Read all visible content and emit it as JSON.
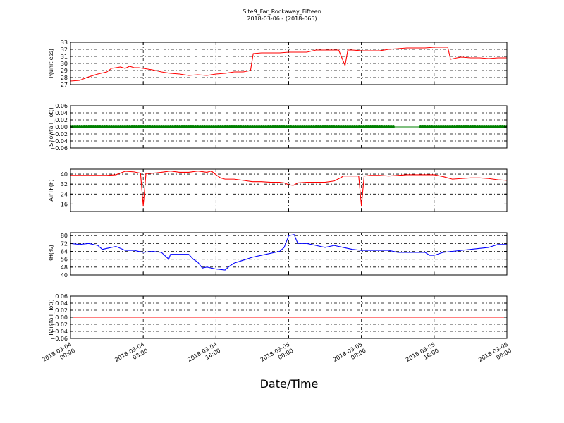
{
  "title": "Site9_Far_Rockaway_Fifteen",
  "subtitle": "2018-03-06 - (2018-065)",
  "chart_data": {
    "type": "line",
    "xlabel": "Date/Time",
    "x_ticks": [
      {
        "t": 0,
        "line1": "2018-03-04",
        "line2": "00:00"
      },
      {
        "t": 8,
        "line1": "2018-03-04",
        "line2": "08:00"
      },
      {
        "t": 16,
        "line1": "2018-03-04",
        "line2": "16:00"
      },
      {
        "t": 24,
        "line1": "2018-03-05",
        "line2": "00:00"
      },
      {
        "t": 32,
        "line1": "2018-03-05",
        "line2": "08:00"
      },
      {
        "t": 40,
        "line1": "2018-03-05",
        "line2": "16:00"
      },
      {
        "t": 48,
        "line1": "2018-03-06",
        "line2": "00:00"
      }
    ],
    "x_range_hours": [
      0,
      48
    ],
    "grid": true,
    "panels": [
      {
        "ylabel": "P(unitless)",
        "ylim": [
          27,
          33
        ],
        "yticks": [
          27,
          28,
          29,
          30,
          31,
          32,
          33
        ],
        "ytick_labels": [
          "27",
          "28",
          "29",
          "30",
          "31",
          "32",
          "33"
        ],
        "color": "#ff0000",
        "style": "line",
        "points": [
          [
            0,
            27.5
          ],
          [
            1,
            27.6
          ],
          [
            2,
            28.1
          ],
          [
            3,
            28.5
          ],
          [
            4,
            28.8
          ],
          [
            4.5,
            29.3
          ],
          [
            5,
            29.4
          ],
          [
            5.5,
            29.5
          ],
          [
            6,
            29.3
          ],
          [
            6.5,
            29.6
          ],
          [
            7,
            29.4
          ],
          [
            7.5,
            29.4
          ],
          [
            8,
            29.3
          ],
          [
            9,
            29.1
          ],
          [
            10,
            28.8
          ],
          [
            11,
            28.6
          ],
          [
            12,
            28.5
          ],
          [
            13,
            28.3
          ],
          [
            14,
            28.4
          ],
          [
            15,
            28.3
          ],
          [
            16,
            28.5
          ],
          [
            17,
            28.6
          ],
          [
            18,
            28.8
          ],
          [
            19,
            28.8
          ],
          [
            19.8,
            29.0
          ],
          [
            20.1,
            31.4
          ],
          [
            21,
            31.5
          ],
          [
            22,
            31.5
          ],
          [
            23,
            31.5
          ],
          [
            24,
            31.6
          ],
          [
            25,
            31.6
          ],
          [
            26,
            31.6
          ],
          [
            27,
            31.9
          ],
          [
            28,
            31.9
          ],
          [
            29.5,
            31.9
          ],
          [
            30.2,
            29.7
          ],
          [
            30.5,
            31.9
          ],
          [
            31,
            31.9
          ],
          [
            32,
            31.8
          ],
          [
            33,
            31.8
          ],
          [
            34,
            31.8
          ],
          [
            35,
            32.0
          ],
          [
            36,
            32.1
          ],
          [
            37,
            32.2
          ],
          [
            38,
            32.2
          ],
          [
            39,
            32.2
          ],
          [
            40,
            32.3
          ],
          [
            41,
            32.3
          ],
          [
            41.5,
            32.3
          ],
          [
            41.8,
            30.6
          ],
          [
            42.5,
            30.8
          ],
          [
            43,
            30.9
          ],
          [
            44,
            30.8
          ],
          [
            45,
            30.8
          ],
          [
            46,
            30.7
          ],
          [
            47,
            30.8
          ],
          [
            48,
            30.8
          ]
        ]
      },
      {
        "ylabel": "Snowfall_Tot()",
        "ylim": [
          -0.06,
          0.06
        ],
        "yticks": [
          -0.06,
          -0.04,
          -0.02,
          0,
          0.02,
          0.04,
          0.06
        ],
        "ytick_labels": [
          "−0.06",
          "−0.04",
          "−0.02",
          "0.00",
          "0.02",
          "0.04",
          "0.06"
        ],
        "color": "#008000",
        "style": "markers",
        "points": [
          [
            0,
            0
          ],
          [
            35.5,
            0
          ],
          [
            38.5,
            0
          ],
          [
            48,
            0
          ]
        ],
        "gaps": [
          [
            35.5,
            38.5
          ]
        ]
      },
      {
        "ylabel": "AirTF(F)",
        "ylim": [
          10,
          44
        ],
        "yticks": [
          16,
          24,
          32,
          40
        ],
        "ytick_labels": [
          "16",
          "24",
          "32",
          "40"
        ],
        "color": "#ff0000",
        "style": "line",
        "points": [
          [
            0,
            39
          ],
          [
            2,
            39
          ],
          [
            4,
            39
          ],
          [
            5,
            39.5
          ],
          [
            6,
            42.3
          ],
          [
            7,
            41.8
          ],
          [
            7.7,
            40.8
          ],
          [
            8,
            14.5
          ],
          [
            8.3,
            40.5
          ],
          [
            9,
            40.7
          ],
          [
            10,
            41.5
          ],
          [
            11,
            42.5
          ],
          [
            12,
            41.5
          ],
          [
            13,
            41.5
          ],
          [
            14,
            42.5
          ],
          [
            15,
            41.5
          ],
          [
            15.5,
            42.5
          ],
          [
            16,
            39.5
          ],
          [
            16.5,
            37
          ],
          [
            17,
            36
          ],
          [
            18,
            36
          ],
          [
            19,
            35
          ],
          [
            20,
            34
          ],
          [
            21,
            34
          ],
          [
            22,
            33.5
          ],
          [
            23,
            33.5
          ],
          [
            23.5,
            33
          ],
          [
            24,
            31.5
          ],
          [
            24.5,
            31
          ],
          [
            25,
            33
          ],
          [
            26,
            33.5
          ],
          [
            27,
            33.5
          ],
          [
            28,
            33.5
          ],
          [
            29,
            34.5
          ],
          [
            29.8,
            37.5
          ],
          [
            30,
            38.5
          ],
          [
            31,
            38.5
          ],
          [
            31.7,
            38.5
          ],
          [
            32,
            14.5
          ],
          [
            32.3,
            38.5
          ],
          [
            33,
            39
          ],
          [
            34,
            39
          ],
          [
            35,
            38.5
          ],
          [
            36,
            39
          ],
          [
            37,
            39.5
          ],
          [
            38,
            39.5
          ],
          [
            39,
            39.5
          ],
          [
            40,
            39.5
          ],
          [
            41,
            38
          ],
          [
            42,
            36
          ],
          [
            43,
            36.5
          ],
          [
            44,
            37
          ],
          [
            45,
            37
          ],
          [
            46,
            36.5
          ],
          [
            47,
            35.5
          ],
          [
            48,
            35
          ]
        ]
      },
      {
        "ylabel": "RH(%)",
        "ylim": [
          40,
          83
        ],
        "yticks": [
          40,
          48,
          56,
          64,
          72,
          80
        ],
        "ytick_labels": [
          "40",
          "48",
          "56",
          "64",
          "72",
          "80"
        ],
        "color": "#0000ff",
        "style": "line",
        "points": [
          [
            0,
            72
          ],
          [
            1,
            71
          ],
          [
            2,
            72
          ],
          [
            3,
            70
          ],
          [
            3.5,
            66
          ],
          [
            4,
            67
          ],
          [
            5,
            69
          ],
          [
            6,
            65
          ],
          [
            7,
            65
          ],
          [
            8,
            63
          ],
          [
            9,
            64
          ],
          [
            10,
            63
          ],
          [
            10.8,
            56
          ],
          [
            11,
            61
          ],
          [
            12,
            61
          ],
          [
            13,
            61
          ],
          [
            13.5,
            56
          ],
          [
            14,
            53
          ],
          [
            14.5,
            47
          ],
          [
            15,
            48
          ],
          [
            15.5,
            47
          ],
          [
            16,
            46
          ],
          [
            17,
            45
          ],
          [
            17.5,
            49
          ],
          [
            18,
            52
          ],
          [
            19,
            55
          ],
          [
            20,
            58
          ],
          [
            21,
            60
          ],
          [
            22,
            62
          ],
          [
            23,
            64
          ],
          [
            23.5,
            68
          ],
          [
            24,
            80
          ],
          [
            24.6,
            81
          ],
          [
            25,
            72
          ],
          [
            26,
            72
          ],
          [
            27,
            70
          ],
          [
            28,
            68
          ],
          [
            29,
            70
          ],
          [
            30,
            68
          ],
          [
            31,
            66
          ],
          [
            32,
            65
          ],
          [
            33,
            65
          ],
          [
            34,
            65
          ],
          [
            35,
            65
          ],
          [
            36,
            63
          ],
          [
            37,
            63
          ],
          [
            38,
            63
          ],
          [
            39,
            63
          ],
          [
            39.5,
            60
          ],
          [
            40,
            60
          ],
          [
            41,
            63
          ],
          [
            42,
            64
          ],
          [
            43,
            65
          ],
          [
            44,
            66
          ],
          [
            45,
            67
          ],
          [
            46,
            68
          ],
          [
            47,
            71
          ],
          [
            48,
            71
          ]
        ]
      },
      {
        "ylabel": "Rainfall_Tot()",
        "ylim": [
          -0.06,
          0.06
        ],
        "yticks": [
          -0.06,
          -0.04,
          -0.02,
          0,
          0.02,
          0.04,
          0.06
        ],
        "ytick_labels": [
          "−0.06",
          "−0.04",
          "−0.02",
          "0.00",
          "0.02",
          "0.04",
          "0.06"
        ],
        "color": "#ff0000",
        "style": "line",
        "points": [
          [
            0,
            0
          ],
          [
            48,
            0
          ]
        ]
      }
    ]
  }
}
